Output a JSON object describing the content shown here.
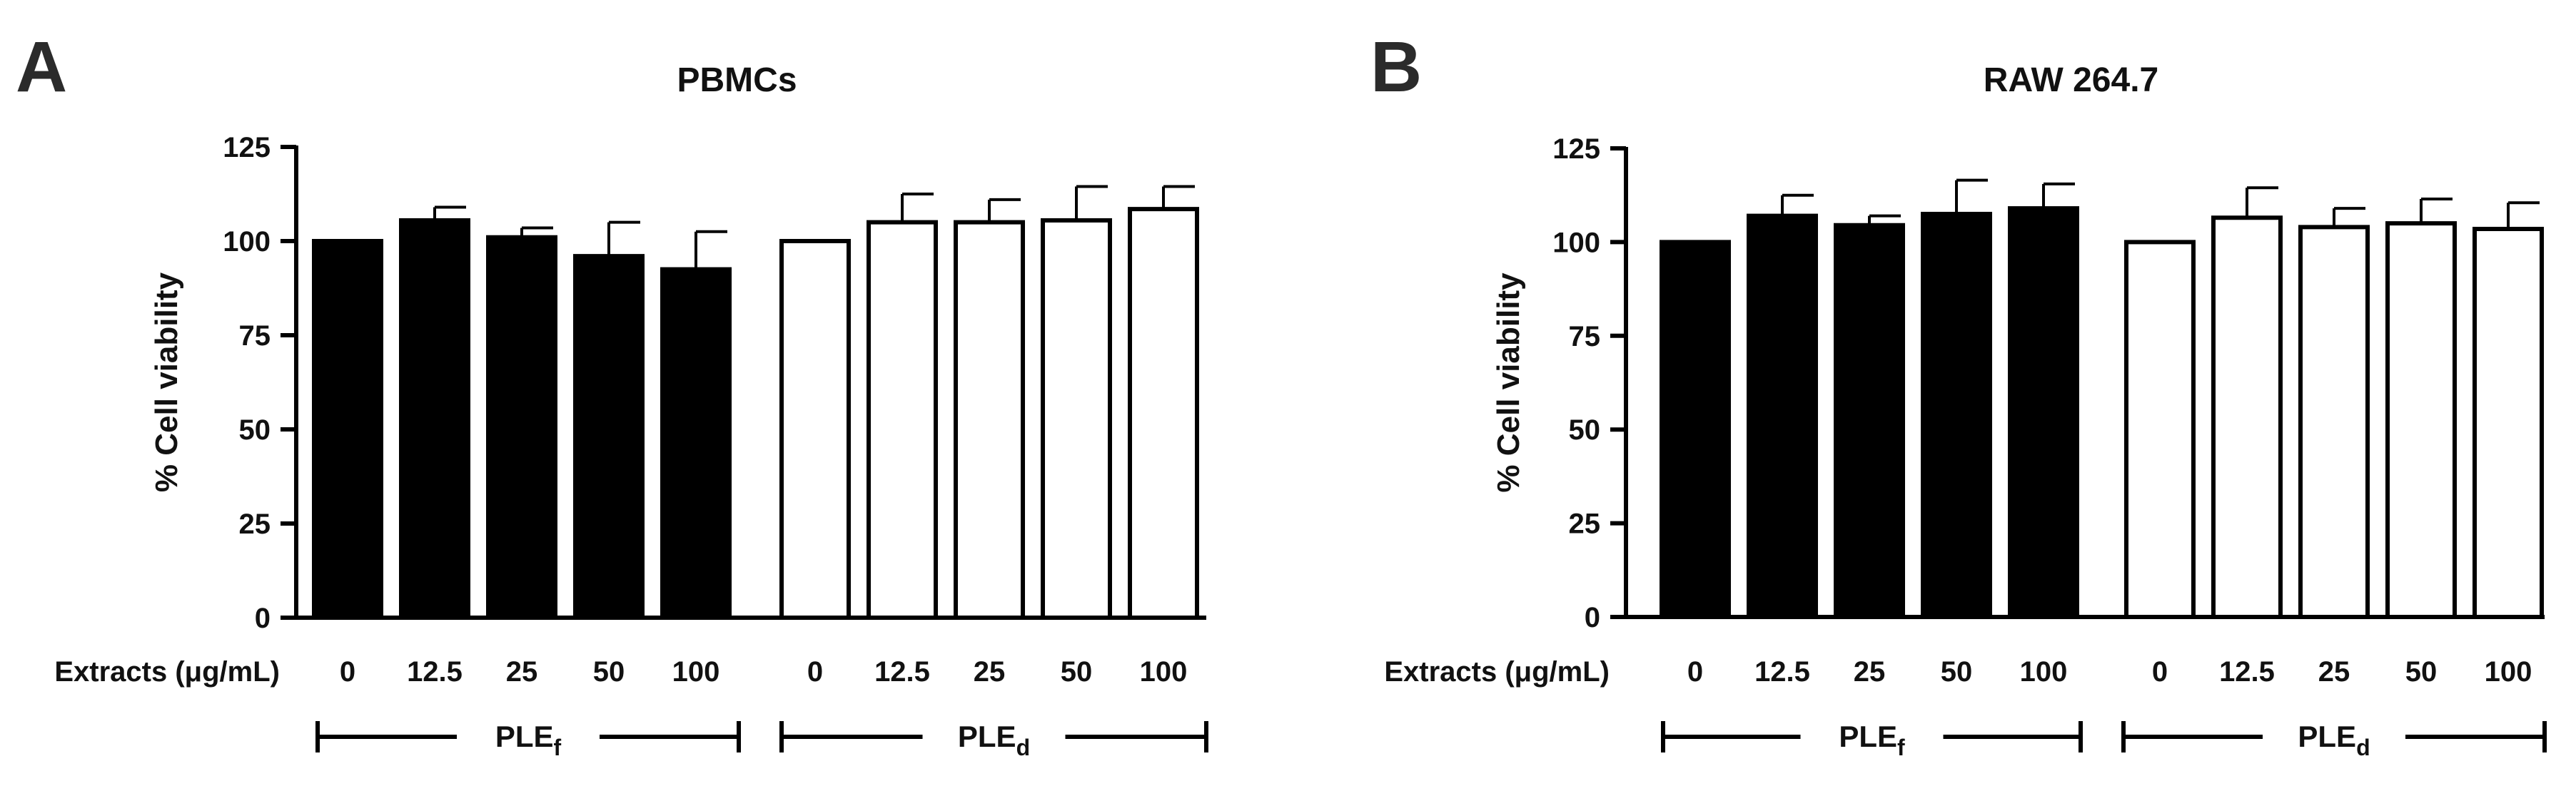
{
  "figure": {
    "x_axis_prefix": "Extracts (μg/mL)"
  },
  "chart_data": [
    {
      "panel": "A",
      "type": "bar",
      "title": "PBMCs",
      "ylabel": "% Cell viability",
      "ylim": [
        0,
        125
      ],
      "yticks": [
        0,
        25,
        50,
        75,
        100,
        125
      ],
      "categories": [
        "0",
        "12.5",
        "25",
        "50",
        "100"
      ],
      "series": [
        {
          "group_base": "PLE",
          "group_sub": "f",
          "fill": "#000000",
          "values": [
            100,
            105.5,
            101,
            96,
            92.5
          ],
          "errors": [
            0,
            3.5,
            2.5,
            9,
            10
          ]
        },
        {
          "group_base": "PLE",
          "group_sub": "d",
          "fill": "#ffffff",
          "values": [
            100,
            105,
            105,
            105.5,
            108.5
          ],
          "errors": [
            0,
            7.5,
            6,
            9,
            6
          ]
        }
      ]
    },
    {
      "panel": "B",
      "type": "bar",
      "title": "RAW 264.7",
      "ylabel": "% Cell viability",
      "ylim": [
        0,
        125
      ],
      "yticks": [
        0,
        25,
        50,
        75,
        100,
        125
      ],
      "categories": [
        "0",
        "12.5",
        "25",
        "50",
        "100"
      ],
      "series": [
        {
          "group_base": "PLE",
          "group_sub": "f",
          "fill": "#000000",
          "values": [
            100,
            107,
            104.5,
            107.5,
            109
          ],
          "errors": [
            0,
            5.5,
            2.5,
            9,
            6.5
          ]
        },
        {
          "group_base": "PLE",
          "group_sub": "d",
          "fill": "#ffffff",
          "values": [
            100,
            106.5,
            104,
            105,
            103.5
          ],
          "errors": [
            0,
            8,
            5,
            6.5,
            7
          ]
        }
      ]
    }
  ]
}
